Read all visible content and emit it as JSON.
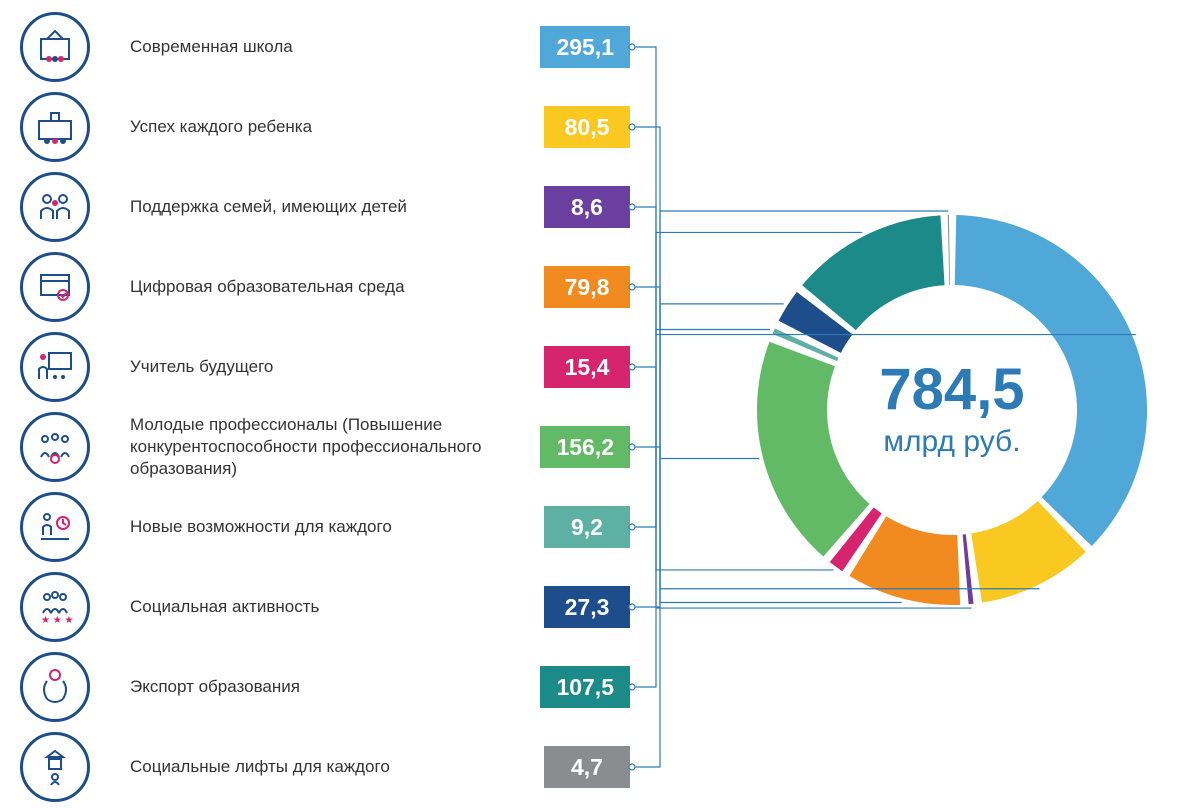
{
  "budget_chart": {
    "type": "donut_with_rows",
    "total_value": "784,5",
    "total_unit": "млрд руб.",
    "center_text_color": "#2c7bb6",
    "center_number_fontsize": 58,
    "center_unit_fontsize": 30,
    "background_color": "#ffffff",
    "icon_border_color": "#1e4d8b",
    "connector_color": "#2c7bb6",
    "badge_text_color": "#ffffff",
    "badge_fontsize": 23,
    "label_fontsize": 17,
    "label_color": "#333333",
    "donut_inner_radius": 125,
    "donut_outer_radius": 195,
    "items": [
      {
        "label": "Современная школа",
        "value": "295,1",
        "num": 295.1,
        "color": "#4fa8d8",
        "icon": "school"
      },
      {
        "label": "Успех каждого ребенка",
        "value": "80,5",
        "num": 80.5,
        "color": "#f9c922",
        "icon": "child-school"
      },
      {
        "label": "Поддержка семей, имеющих детей",
        "value": "8,6",
        "num": 8.6,
        "color": "#6b3fa0",
        "icon": "family"
      },
      {
        "label": "Цифровая образовательная среда",
        "value": "79,8",
        "num": 79.8,
        "color": "#f18a1f",
        "icon": "digital"
      },
      {
        "label": "Учитель будущего",
        "value": "15,4",
        "num": 15.4,
        "color": "#d6246e",
        "icon": "teacher"
      },
      {
        "label": "Молодые профессионалы (Повышение конкурентоспособности профессионального образования)",
        "value": "156,2",
        "num": 156.2,
        "color": "#62b966",
        "icon": "professionals"
      },
      {
        "label": "Новые возможности для каждого",
        "value": "9,2",
        "num": 9.2,
        "color": "#5fb0a4",
        "icon": "opportunity"
      },
      {
        "label": "Социальная активность",
        "value": "27,3",
        "num": 27.3,
        "color": "#1e4d8b",
        "icon": "activity"
      },
      {
        "label": "Экспорт образования",
        "value": "107,5",
        "num": 107.5,
        "color": "#1d8a8a",
        "icon": "export"
      },
      {
        "label": "Социальные лифты для каждого",
        "value": "4,7",
        "num": 4.7,
        "color": "#8a8d8f",
        "icon": "lift"
      }
    ]
  }
}
